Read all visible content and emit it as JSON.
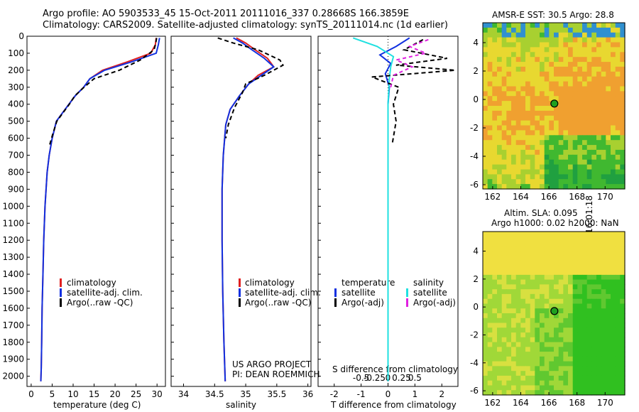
{
  "header": {
    "title_line1": "Argo profile: AO 5903533_45 15-Oct-2011 20111016_337 0.28668S 166.3859E",
    "title_line2": "Climatology: CARS2009. Satellite-adjusted climatology: synTS_20111014.nc (1d earlier)"
  },
  "colors": {
    "climatology": "#e02020",
    "satellite": "#1030e0",
    "argo": "#000000",
    "salinity_satellite": "#20e0e0",
    "salinity_argo": "#e020e0",
    "map_yellow": "#e8d020",
    "map_green": "#20b020"
  },
  "chart_data": [
    {
      "type": "line",
      "id": "temperature_profile",
      "xlabel": "temperature (deg C)",
      "xlim": [
        -1,
        32
      ],
      "xticks": [
        0,
        5,
        10,
        15,
        20,
        25,
        30
      ],
      "ylim": [
        2060,
        0
      ],
      "yticks": [
        0,
        100,
        200,
        300,
        400,
        500,
        600,
        700,
        800,
        900,
        1000,
        1100,
        1200,
        1300,
        1400,
        1500,
        1600,
        1700,
        1800,
        1900,
        2000
      ],
      "legend": [
        "climatology",
        "satellite-adj. clim.",
        "Argo(..raw -QC)"
      ],
      "series": [
        {
          "name": "climatology",
          "x": [
            29.8,
            29.6,
            28.5,
            23,
            17,
            14,
            12.5,
            10.5,
            9,
            7.5,
            6,
            5,
            4.3,
            3.8,
            3.3,
            3,
            2.8,
            2.6,
            2.5,
            2.4,
            2.3
          ],
          "y": [
            10,
            50,
            100,
            150,
            200,
            250,
            300,
            350,
            400,
            450,
            500,
            600,
            700,
            800,
            1000,
            1200,
            1400,
            1600,
            1800,
            1950,
            2030
          ]
        },
        {
          "name": "satellite-adj. clim.",
          "x": [
            30.6,
            30.3,
            29.8,
            24,
            17.5,
            14,
            12.5,
            10.5,
            9,
            7.5,
            6,
            5,
            4.3,
            3.8,
            3.3,
            3,
            2.8,
            2.6,
            2.5,
            2.4,
            2.3
          ],
          "y": [
            10,
            50,
            100,
            150,
            200,
            250,
            300,
            350,
            400,
            450,
            500,
            600,
            700,
            800,
            1000,
            1200,
            1400,
            1600,
            1800,
            1950,
            2030
          ]
        },
        {
          "name": "Argo(..raw -QC)",
          "x": [
            29.9,
            29.7,
            29.3,
            26,
            21,
            15,
            12.6,
            10.4,
            9.1,
            7.6,
            6.1,
            5.1,
            4.4
          ],
          "y": [
            10,
            40,
            80,
            140,
            200,
            250,
            300,
            350,
            400,
            450,
            500,
            580,
            640
          ]
        }
      ]
    },
    {
      "type": "line",
      "id": "salinity_profile",
      "xlabel": "salinity",
      "xlim": [
        33.8,
        36.05
      ],
      "xticks": [
        34,
        34.5,
        35,
        35.5,
        36
      ],
      "ylim": [
        2060,
        0
      ],
      "legend": [
        "climatology",
        "satellite-adj. clim.",
        "Argo(..raw -QC)"
      ],
      "series": [
        {
          "name": "climatology",
          "x": [
            34.85,
            35.0,
            35.15,
            35.35,
            35.45,
            35.2,
            35.05,
            34.9,
            34.75,
            34.68,
            34.64,
            34.62,
            34.62,
            34.63,
            34.65,
            34.67
          ],
          "y": [
            10,
            40,
            80,
            130,
            180,
            230,
            280,
            350,
            430,
            520,
            700,
            900,
            1200,
            1500,
            1800,
            2030
          ]
        },
        {
          "name": "satellite-adj. clim.",
          "x": [
            34.8,
            34.95,
            35.1,
            35.3,
            35.45,
            35.25,
            35.05,
            34.9,
            34.75,
            34.68,
            34.64,
            34.62,
            34.62,
            34.63,
            34.65,
            34.67
          ],
          "y": [
            10,
            40,
            80,
            130,
            180,
            230,
            280,
            350,
            430,
            520,
            700,
            900,
            1200,
            1500,
            1800,
            2030
          ]
        },
        {
          "name": "Argo(..raw -QC)",
          "x": [
            34.55,
            34.8,
            35.2,
            35.55,
            35.6,
            35.3,
            35.0,
            34.95,
            34.82,
            34.72,
            34.68
          ],
          "y": [
            10,
            40,
            80,
            140,
            170,
            230,
            280,
            330,
            420,
            520,
            600
          ]
        }
      ]
    },
    {
      "type": "line",
      "id": "difference_profile",
      "xlabel_bottom": "T difference from climatology",
      "xlabel_top": "S difference from climatology",
      "xlim": [
        -2.6,
        2.6
      ],
      "xticks_bottom": [
        -2,
        -1,
        0,
        1,
        2
      ],
      "xticks_top_labels": [
        "-0.5",
        "-0.25",
        "0",
        "0.25",
        "0.5"
      ],
      "ylim": [
        2060,
        0
      ],
      "legend_temperature": {
        "title": "temperature",
        "entries": [
          "satellite",
          "Argo(-adj)"
        ]
      },
      "legend_salinity": {
        "title": "salinity",
        "entries": [
          "satellite",
          "Argo(-adj)"
        ]
      },
      "series": [
        {
          "name": "temperature satellite",
          "x": [
            0.8,
            0.3,
            -0.3,
            0.1,
            -0.1,
            0.05,
            0.0,
            0.0,
            0.0,
            0.0
          ],
          "y": [
            10,
            60,
            110,
            160,
            220,
            300,
            400,
            700,
            1200,
            2030
          ]
        },
        {
          "name": "salinity satellite",
          "x": [
            -1.3,
            -0.4,
            0.2,
            0.1,
            0.05,
            0.0,
            0.0,
            0.0
          ],
          "y": [
            10,
            60,
            120,
            180,
            250,
            400,
            900,
            2030
          ]
        },
        {
          "name": "temperature Argo(-adj)",
          "x": [
            1.3,
            0.6,
            2.2,
            0.3,
            2.5,
            -0.6,
            0.4,
            0.2,
            0.3,
            0.15
          ],
          "y": [
            20,
            80,
            130,
            170,
            200,
            240,
            300,
            400,
            500,
            640
          ]
        },
        {
          "name": "salinity Argo(-adj)",
          "x": [
            1.5,
            0.8,
            1.4,
            0.3,
            0.9,
            0.2,
            0.1
          ],
          "y": [
            20,
            60,
            100,
            140,
            180,
            230,
            300
          ]
        }
      ]
    },
    {
      "type": "heatmap",
      "id": "sst_map",
      "title": "AMSR-E SST: 30.5  Argo: 28.8",
      "xticks": [
        162,
        164,
        166,
        168,
        170
      ],
      "yticks": [
        4,
        2,
        0,
        -2,
        -4,
        -6
      ],
      "marker_lon": 166.39,
      "marker_lat": -0.29
    },
    {
      "type": "heatmap",
      "id": "sla_map",
      "title_line1": "Altim. SLA: 0.095",
      "title_line2": "Argo h1000: 0.02  h2000: NaN",
      "xticks": [
        162,
        164,
        166,
        168,
        170
      ],
      "yticks": [
        4,
        2,
        0,
        -2,
        -4,
        -6
      ],
      "marker_lon": 166.39,
      "marker_lat": -0.29
    }
  ],
  "annotations": {
    "project_line1": "US ARGO PROJECT",
    "project_line2": "PI: DEAN ROEMMICH",
    "credit": "©IMOS 20-Oct-2011 16:01:18"
  }
}
